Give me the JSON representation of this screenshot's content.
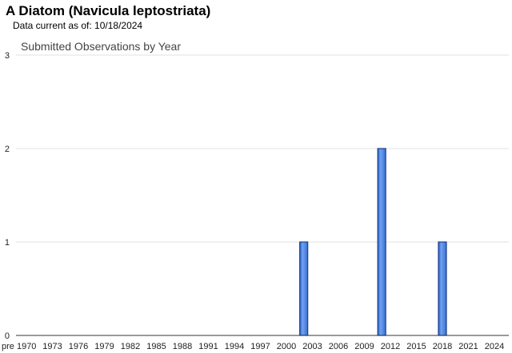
{
  "header": {
    "title": "A Diatom   (Navicula leptostriata)",
    "subtitle": "Data current as of: 10/18/2024"
  },
  "chart_data": {
    "type": "bar",
    "title": "Submitted Observations by Year",
    "xlabel": "",
    "ylabel": "",
    "ylim": [
      0,
      3
    ],
    "yticks": [
      "0",
      "1",
      "2",
      "3"
    ],
    "xticks": [
      "pre 1970",
      "1973",
      "1976",
      "1979",
      "1982",
      "1985",
      "1988",
      "1991",
      "1994",
      "1997",
      "2000",
      "2003",
      "2006",
      "2009",
      "2012",
      "2015",
      "2018",
      "2021",
      "2024"
    ],
    "categories": [
      "2002",
      "2011",
      "2018"
    ],
    "values": [
      1,
      2,
      1
    ],
    "bar_color": "#4a86e8",
    "bar_edge_color": "#1c3f8c",
    "grid": true,
    "legend": "none"
  }
}
